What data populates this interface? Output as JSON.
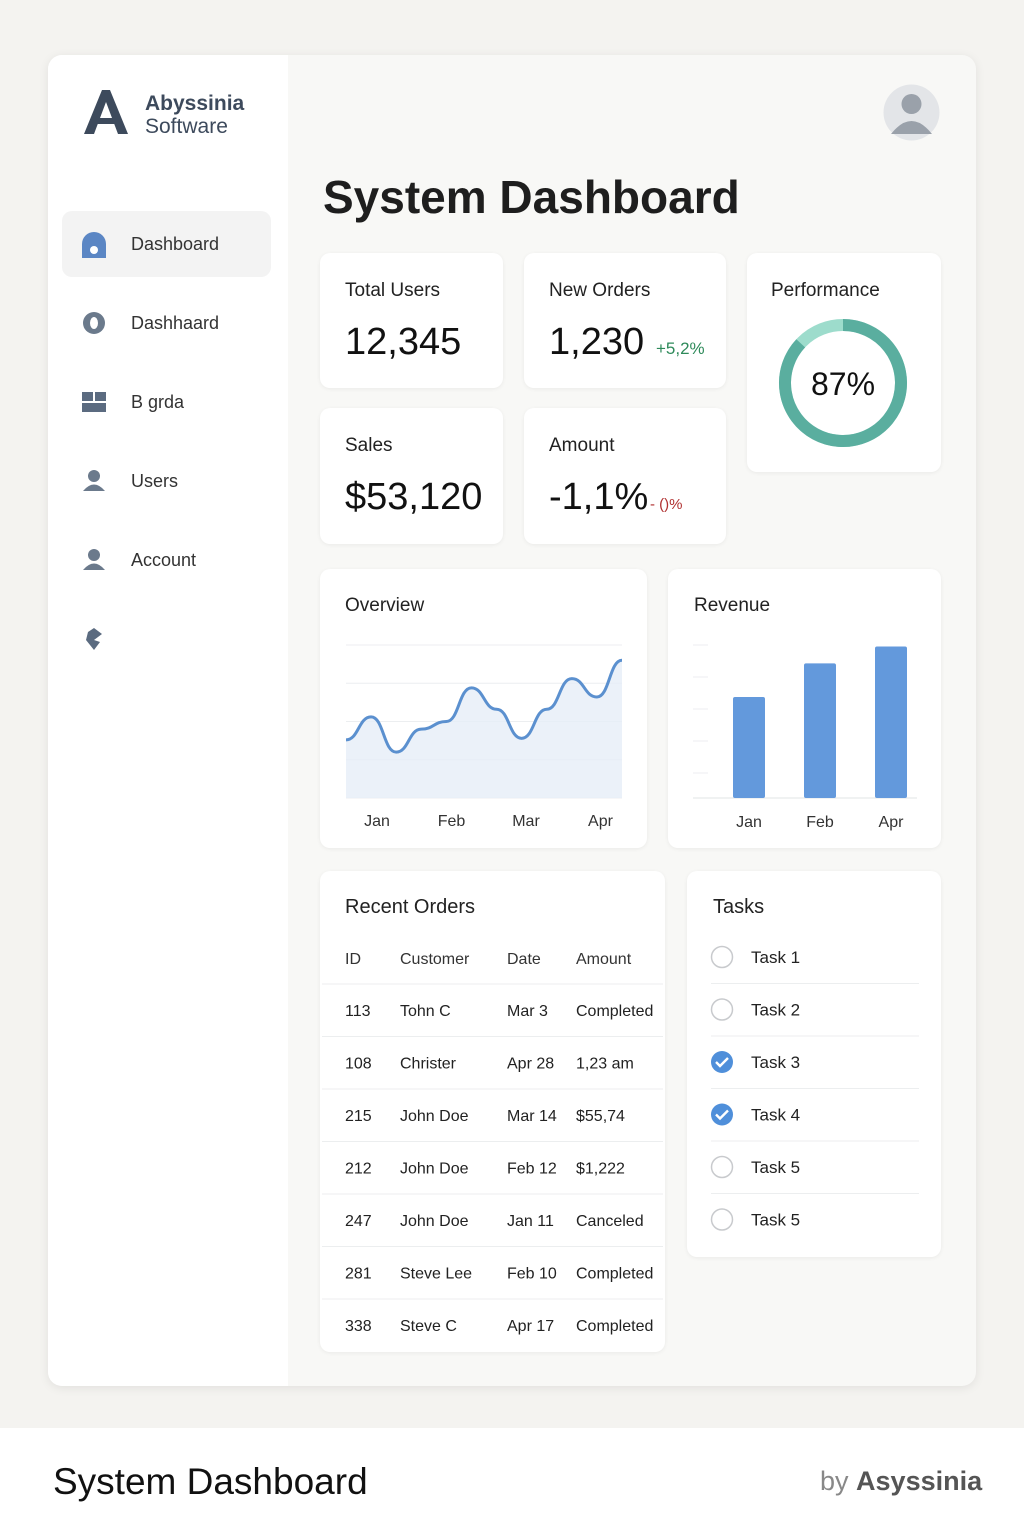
{
  "brand": {
    "name": "Abyssinia",
    "sub": "Software"
  },
  "nav": [
    "Dashboard",
    "Dashhaard",
    "B grda",
    "Users",
    "Account"
  ],
  "title": "System Dashboard",
  "stats": [
    {
      "label": "Total Users",
      "value": "12,345"
    },
    {
      "label": "New Orders",
      "value": "1,230",
      "delta": "+5,2%"
    },
    {
      "label": "Sales",
      "value": "$53,120"
    },
    {
      "label": "Amount",
      "value": "-1,1%",
      "delta": "- ()%"
    }
  ],
  "performance": {
    "label": "Performance",
    "value": 87,
    "value_label": "87%"
  },
  "overview": {
    "title": "Overview",
    "type": "line",
    "x_labels": [
      "Jan",
      "Feb",
      "Mar",
      "Apr"
    ],
    "values": [
      38,
      53,
      30,
      45,
      50,
      72,
      58,
      39,
      58,
      78,
      66,
      90
    ],
    "ylim": [
      0,
      100
    ]
  },
  "revenue": {
    "title": "Revenue",
    "type": "bar",
    "categories": [
      "Jan",
      "Feb",
      "Apr"
    ],
    "values": [
      66,
      88,
      99
    ],
    "ylim": [
      0,
      100
    ],
    "color": "#6399dc"
  },
  "orders": {
    "title": "Recent Orders",
    "columns": [
      "ID",
      "Customer",
      "Date",
      "Amount"
    ],
    "rows": [
      [
        "113",
        "Tohn C",
        "Mar 3",
        "Completed"
      ],
      [
        "108",
        "Christer",
        "Apr 28",
        "1,23 am"
      ],
      [
        "215",
        "John Doe",
        "Mar 14",
        "$55,74"
      ],
      [
        "212",
        "John Doe",
        "Feb 12",
        "$1,222"
      ],
      [
        "247",
        "John Doe",
        "Jan 11",
        "Canceled"
      ],
      [
        "281",
        "Steve Lee",
        "Feb 10",
        "Completed"
      ],
      [
        "338",
        "Steve C",
        "Apr 17",
        "Completed"
      ]
    ]
  },
  "tasks": {
    "title": "Tasks",
    "items": [
      {
        "label": "Task 1",
        "done": false
      },
      {
        "label": "Task 2",
        "done": false
      },
      {
        "label": "Task 3",
        "done": true
      },
      {
        "label": "Task 4",
        "done": true
      },
      {
        "label": "Task 5",
        "done": false
      },
      {
        "label": "Task 5",
        "done": false
      }
    ]
  },
  "footer": {
    "title": "System Dashboard",
    "by": "by",
    "brand": "Asyssinia"
  }
}
